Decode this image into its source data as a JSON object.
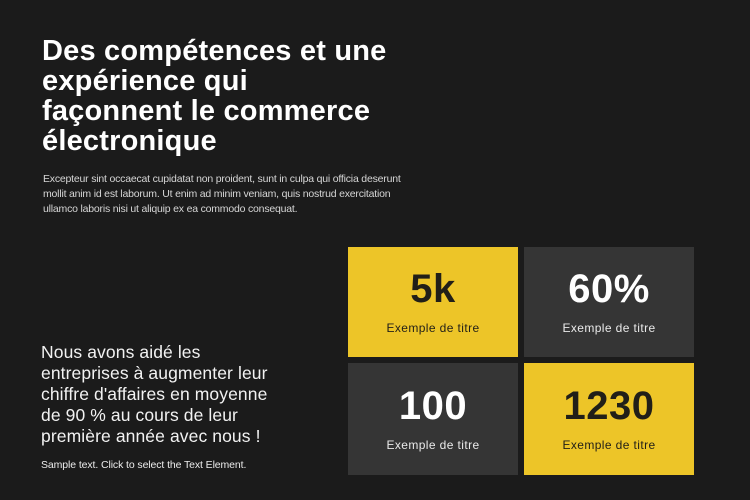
{
  "theme": {
    "bg": "#1b1b1b",
    "card-dark": "#353535",
    "card-yellow": "#edc528",
    "ink-dark": "#211f18",
    "text-white": "#ffffff",
    "text-gray": "#d6d6d6"
  },
  "heading": {
    "lines": [
      "Des compétences et une",
      "expérience qui",
      "façonnent le commerce",
      "électronique"
    ]
  },
  "intro": {
    "lines": [
      "Excepteur sint occaecat cupidatat non proident, sunt in culpa qui officia deserunt",
      "mollit anim id est laborum. Ut enim ad minim veniam, quis nostrud exercitation",
      "ullamco laboris nisi ut aliquip ex ea commodo consequat."
    ]
  },
  "stats": {
    "cards": [
      {
        "value": "5k",
        "label": "Exemple de titre",
        "style": "yellow"
      },
      {
        "value": "60%",
        "label": "Exemple de titre",
        "style": "dark"
      },
      {
        "value": "100",
        "label": "Exemple de titre",
        "style": "dark"
      },
      {
        "value": "1230",
        "label": "Exemple de titre",
        "style": "yellow"
      }
    ]
  },
  "support": {
    "lines": [
      "Nous avons aidé les",
      "entreprises à augmenter leur",
      "chiffre d'affaires en moyenne",
      "de 90 % au cours de leur",
      "première année avec nous !"
    ]
  },
  "sample": {
    "text": "Sample text. Click to select the Text Element."
  }
}
